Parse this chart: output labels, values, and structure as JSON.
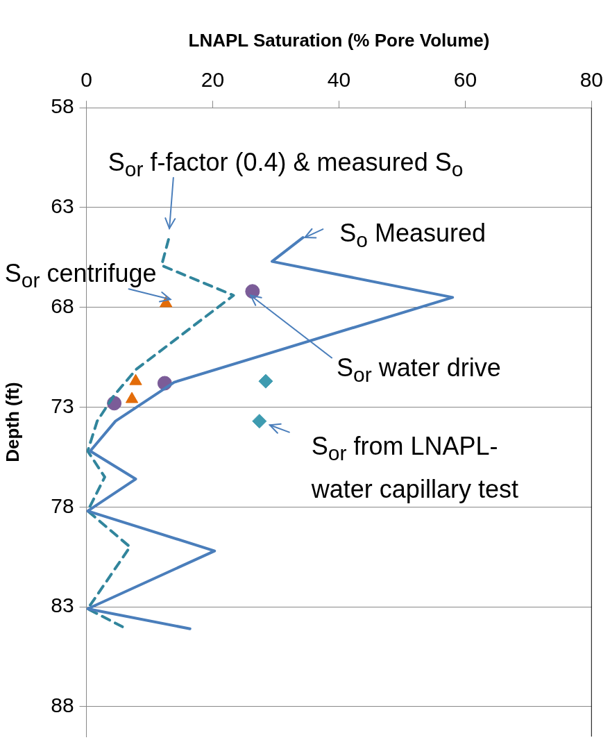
{
  "chart_data": {
    "type": "line",
    "xlabel": "LNAPL Saturation (% Pore Volume)",
    "ylabel": "Depth (ft)",
    "xlim": [
      0,
      80
    ],
    "xticks": [
      0,
      20,
      40,
      60,
      80
    ],
    "ylim": [
      89.5,
      58
    ],
    "yticks": [
      58,
      63,
      68,
      73,
      78,
      83,
      88
    ],
    "grid": "y",
    "series": [
      {
        "type": "line",
        "color": "#4a7ebb",
        "marker": "none",
        "line_style": "solid",
        "x": [
          34.3,
          29.4,
          58.0,
          13.9,
          4.6,
          0.6,
          7.8,
          0.2,
          20.3,
          0.2,
          16.4
        ],
        "values": [
          64.5,
          65.7,
          67.5,
          71.75,
          73.7,
          75.2,
          76.6,
          78.2,
          80.2,
          83.1,
          84.1
        ]
      },
      {
        "type": "line",
        "color": "#31859c",
        "marker": "none",
        "line_style": "dashed",
        "x": [
          13.0,
          11.9,
          23.3,
          7.9,
          4.4,
          1.7,
          0.2,
          2.9,
          0.2,
          6.9,
          0.2,
          5.7
        ],
        "values": [
          64.6,
          65.9,
          67.4,
          71.1,
          72.4,
          73.7,
          75.2,
          76.5,
          78.2,
          80.0,
          83.1,
          84.0
        ]
      },
      {
        "type": "scatter",
        "color": "#e36c09",
        "marker": "triangle",
        "x": [
          12.6,
          7.8,
          7.2
        ],
        "values": [
          67.8,
          71.7,
          72.6
        ]
      },
      {
        "type": "scatter",
        "color": "#7b5c98",
        "marker": "circle",
        "x": [
          26.3,
          12.4,
          4.4
        ],
        "values": [
          67.2,
          71.8,
          72.8
        ]
      },
      {
        "type": "scatter",
        "color": "#3e9bb0",
        "marker": "diamond",
        "x": [
          28.4,
          27.4
        ],
        "values": [
          71.7,
          73.7
        ]
      }
    ],
    "annotations": [
      {
        "text": "S$_{or}$ f-factor (0.4) & measured S$_{o}$",
        "x": 13.0,
        "y": 64.6
      },
      {
        "text": "S$_{o}$ Measured",
        "x": 34.6,
        "y": 64.5
      },
      {
        "text": "S$_{or}$ centrifuge",
        "x": 13.3,
        "y": 67.6
      },
      {
        "text": "S$_{or}$ water drive",
        "x": 26.0,
        "y": 67.4
      },
      {
        "text": "S$_{or}$ from LNAPL-water capillary test",
        "x": 27.4,
        "y": 73.7
      }
    ]
  }
}
